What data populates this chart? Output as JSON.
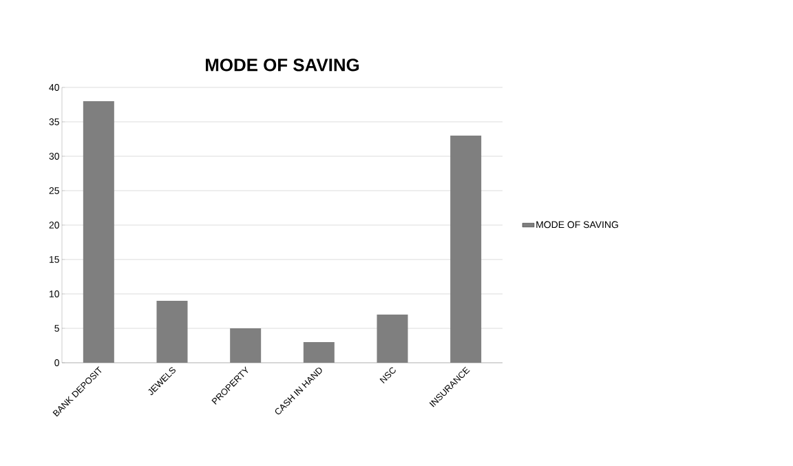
{
  "chart_data": {
    "type": "bar",
    "title": "MODE OF SAVING",
    "categories": [
      "BANK DEPOSIT",
      "JEWELS",
      "PROPERTY",
      "CASH IN HAND",
      "NSC",
      "INSURANCE"
    ],
    "series": [
      {
        "name": "MODE OF SAVING",
        "color": "#7f7f7f",
        "values": [
          38,
          9,
          5,
          3,
          7,
          33
        ]
      }
    ],
    "ylim": [
      0,
      40
    ],
    "yticks": [
      0,
      5,
      10,
      15,
      20,
      25,
      30,
      35,
      40
    ],
    "grid": "y",
    "legend": "right"
  }
}
